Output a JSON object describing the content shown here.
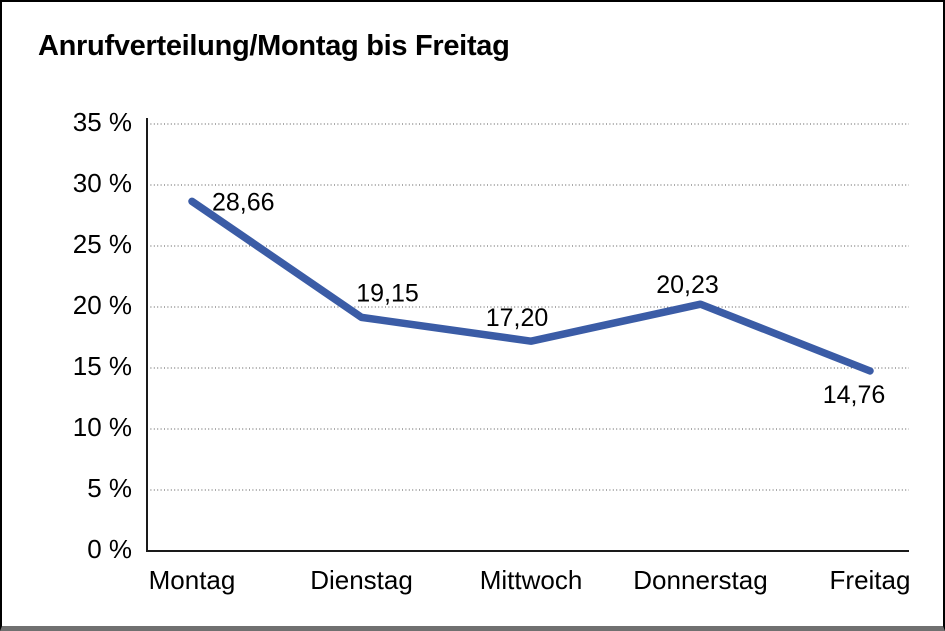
{
  "title": "Anrufverteilung/Montag bis Freitag",
  "chart_data": {
    "type": "line",
    "title": "Anrufverteilung/Montag bis Freitag",
    "categories": [
      "Montag",
      "Dienstag",
      "Mittwoch",
      "Donnerstag",
      "Freitag"
    ],
    "values": [
      28.66,
      19.15,
      17.2,
      20.23,
      14.76
    ],
    "value_labels": [
      "28,66",
      "19,15",
      "17,20",
      "20,23",
      "14,76"
    ],
    "xlabel": "",
    "ylabel": "",
    "ylim": [
      0,
      35
    ],
    "y_ticks": [
      35,
      30,
      25,
      20,
      15,
      10,
      5,
      0
    ],
    "y_tick_labels": [
      "35 %",
      "30 %",
      "25 %",
      "20 %",
      "15 %",
      "10 %",
      "5 %",
      "0 %"
    ],
    "grid": "horizontal-dotted",
    "legend_position": "none",
    "markers": "none"
  },
  "colors": {
    "line": "#3b5ca6",
    "axis": "#1a1a1a",
    "gridline": "#555555",
    "text": "#000000",
    "background": "#ffffff",
    "frame_border": "#000000",
    "frame_bottom_border": "#707070"
  }
}
